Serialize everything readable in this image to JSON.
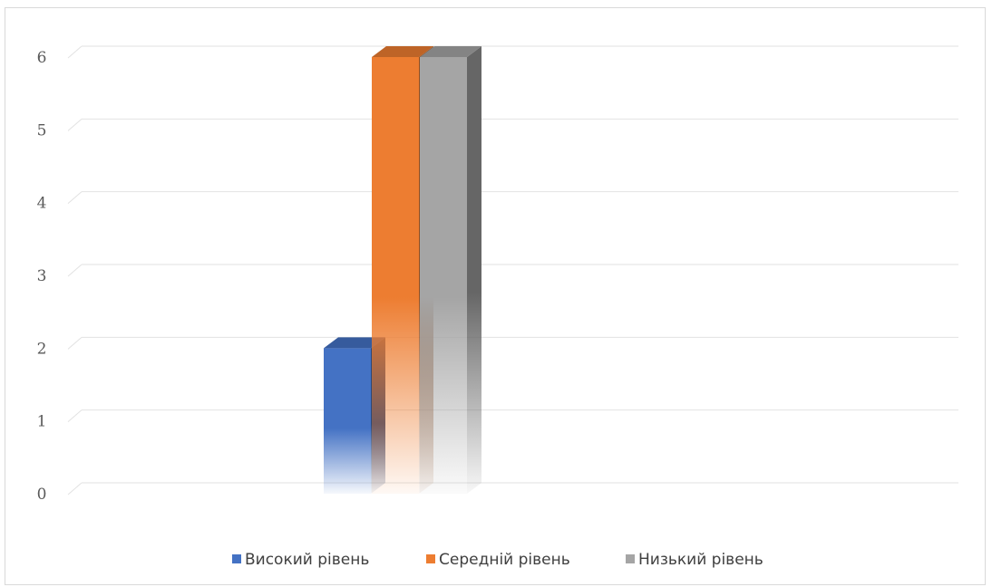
{
  "chart_data": {
    "type": "bar",
    "style": "3d-clustered-column",
    "categories": [
      ""
    ],
    "series": [
      {
        "name": "Високий рівень",
        "values": [
          2
        ],
        "color": "#4472c4"
      },
      {
        "name": "Середній рівень",
        "values": [
          6
        ],
        "color": "#ed7d31"
      },
      {
        "name": "Низький рівень",
        "values": [
          6
        ],
        "color": "#a5a5a5"
      }
    ],
    "title": "",
    "xlabel": "",
    "ylabel": "",
    "ylim": [
      0,
      6
    ],
    "yticks": [
      "0",
      "1",
      "2",
      "3",
      "4",
      "5",
      "6"
    ],
    "grid": true,
    "legend_position": "bottom"
  }
}
